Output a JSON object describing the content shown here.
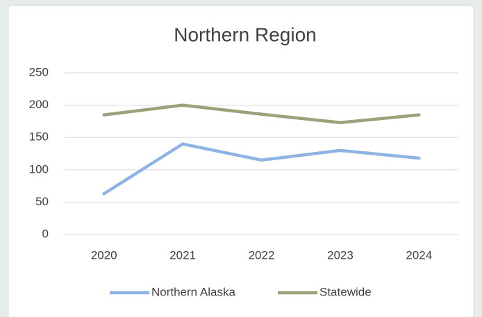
{
  "chart_data": {
    "type": "line",
    "title": "Northern Region",
    "categories": [
      "2020",
      "2021",
      "2022",
      "2023",
      "2024"
    ],
    "series": [
      {
        "name": "Northern Alaska",
        "color": "#8eb4e3",
        "values": [
          63,
          140,
          115,
          130,
          118
        ]
      },
      {
        "name": "Statewide",
        "color": "#9ba27a",
        "values": [
          185,
          200,
          186,
          173,
          185
        ]
      }
    ],
    "ylim": [
      0,
      250
    ],
    "yticks": [
      0,
      50,
      100,
      150,
      200,
      250
    ],
    "grid": true,
    "legend": "bottom"
  }
}
